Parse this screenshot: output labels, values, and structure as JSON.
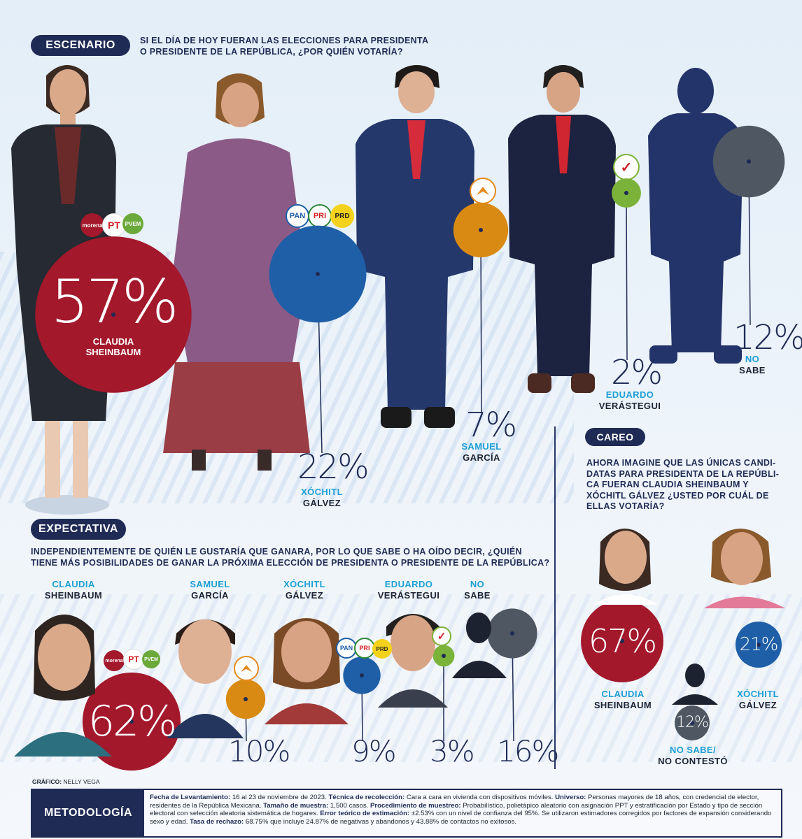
{
  "colors": {
    "navy": "#1f2b55",
    "morena": "#a3182b",
    "pan": "#1f5fa8",
    "mc": "#d98a12",
    "pvem": "#7bb33a",
    "nosabe": "#4f5862",
    "accent": "#1c9fd6"
  },
  "escenario": {
    "label": "ESCENARIO",
    "question": [
      "SI EL DÍA DE HOY FUERAN LAS ELECCIONES PARA PRESIDENTA",
      "O PRESIDENTE DE LA REPÚBLICA, ¿POR QUIÉN VOTARÍA?"
    ]
  },
  "expectativa": {
    "label": "EXPECTATIVA",
    "question": [
      "INDEPENDIENTEMENTE DE QUIÉN LE GUSTARÍA QUE GANARA, POR LO QUE SABE O HA OÍDO DECIR, ¿QUIÉN",
      "TIENE MÁS POSIBILIDADES DE GANAR LA PRÓXIMA ELECCIÓN DE PRESIDENTA O PRESIDENTE DE LA REPÚBLICA?"
    ]
  },
  "careo": {
    "label": "CAREO",
    "question": [
      "AHORA IMAGINE QUE LAS ÚNICAS CANDI-",
      "DATAS PARA PRESIDENTA DE LA REPÚBLI-",
      "CA FUERAN CLAUDIA SHEINBAUM Y",
      "XÓCHITL GÁLVEZ ¿USTED POR CUÁL DE",
      "ELLAS VOTARÍA?"
    ]
  },
  "party_logos": {
    "morena": "morena",
    "pt": "PT",
    "prd": "PRD",
    "pan": "PAN",
    "pri": "PRI"
  },
  "chart_data": [
    {
      "type": "bubble",
      "title": "ESCENARIO",
      "categories": [
        "CLAUDIA SHEINBAUM",
        "XÓCHITL GÁLVEZ",
        "SAMUEL GARCÍA",
        "EDUARDO VERÁSTEGUI",
        "NO SABE"
      ],
      "values": [
        57,
        22,
        7,
        2,
        12
      ],
      "labels": [
        "57%",
        "22%",
        "7%",
        "2%",
        "12%"
      ],
      "first_names": [
        "CLAUDIA",
        "XÓCHITL",
        "SAMUEL",
        "EDUARDO",
        "NO"
      ],
      "last_names": [
        "SHEINBAUM",
        "GÁLVEZ",
        "GARCÍA",
        "VERÁSTEGUI",
        "SABE"
      ]
    },
    {
      "type": "bubble",
      "title": "EXPECTATIVA",
      "categories": [
        "CLAUDIA SHEINBAUM",
        "SAMUEL GARCÍA",
        "XÓCHITL GÁLVEZ",
        "EDUARDO VERÁSTEGUI",
        "NO SABE"
      ],
      "values": [
        62,
        10,
        9,
        3,
        16
      ],
      "labels": [
        "62%",
        "10%",
        "9%",
        "3%",
        "16%"
      ],
      "first_names": [
        "CLAUDIA",
        "SAMUEL",
        "XÓCHITL",
        "EDUARDO",
        "NO"
      ],
      "last_names": [
        "SHEINBAUM",
        "GARCÍA",
        "GÁLVEZ",
        "VERÁSTEGUI",
        "SABE"
      ]
    },
    {
      "type": "bubble",
      "title": "CAREO",
      "categories": [
        "CLAUDIA SHEINBAUM",
        "XÓCHITL GÁLVEZ",
        "NO SABE/ NO CONTESTÓ"
      ],
      "values": [
        67,
        21,
        12
      ],
      "labels": [
        "67%",
        "21%",
        "12%"
      ],
      "first_names": [
        "CLAUDIA",
        "XÓCHITL",
        "NO SABE/"
      ],
      "last_names": [
        "SHEINBAUM",
        "GÁLVEZ",
        "NO CONTESTÓ"
      ]
    }
  ],
  "credit": {
    "label": "GRÁFICO:",
    "name": "NELLY VEGA"
  },
  "metodologia": {
    "label": "METODOLOGÍA",
    "items": [
      {
        "k": "Fecha de Levantamiento:",
        "v": " 16 al 23 de noviembre de 2023. "
      },
      {
        "k": "Técnica de recolección:",
        "v": " Cara a cara en vivienda con dispositivos móviles. "
      },
      {
        "k": "Universo:",
        "v": " Personas mayores de 18 años, con credencial de elector, residentes de la República Mexicana. "
      },
      {
        "k": "Tamaño de muestra:",
        "v": " 1,500 casos. "
      },
      {
        "k": "Procedimiento de muestreo:",
        "v": " Probabilístico, polietápico aleatorio con asignación PPT y estratificación por Estado y tipo de sección electoral con selección aleatoria sistemática de hogares. "
      },
      {
        "k": "Error teórico de estimación:",
        "v": " ±2.53% con un nivel de confianza del 95%. Se utilizaron estimadores corregidos por factores de expansión considerando sexo y edad. "
      },
      {
        "k": "Tasa de rechazo:",
        "v": " 68.75% que incluye 24.87% de negativas y abandonos y 43.88% de contactos no exitosos."
      }
    ]
  }
}
